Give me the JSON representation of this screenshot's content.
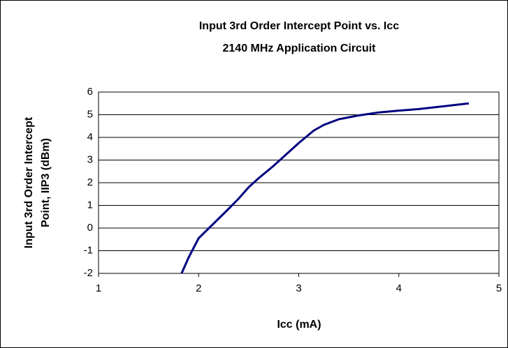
{
  "chart_data": {
    "type": "line",
    "title": "Input 3rd Order Intercept Point vs. Icc",
    "subtitle": "2140 MHz Application Circuit",
    "xlabel": "Icc (mA)",
    "ylabel": [
      "Input 3rd Order Intercept",
      "Point, IIP3 (dBm)"
    ],
    "xlim": [
      1,
      5
    ],
    "xticks": [
      1,
      2,
      3,
      4,
      5
    ],
    "ylim": [
      -2,
      6
    ],
    "yticks": [
      -2,
      -1,
      0,
      1,
      2,
      3,
      4,
      5,
      6
    ],
    "grid": true,
    "series": [
      {
        "name": "IIP3",
        "color": "#000080",
        "x": [
          1.83,
          1.9,
          2.0,
          2.15,
          2.3,
          2.4,
          2.5,
          2.6,
          2.75,
          2.9,
          3.0,
          3.15,
          3.25,
          3.4,
          3.6,
          3.8,
          4.0,
          4.2,
          4.4,
          4.6,
          4.7
        ],
        "values": [
          -2,
          -1.3,
          -0.45,
          0.2,
          0.85,
          1.3,
          1.8,
          2.2,
          2.75,
          3.35,
          3.75,
          4.3,
          4.55,
          4.8,
          4.97,
          5.1,
          5.18,
          5.25,
          5.35,
          5.45,
          5.5
        ]
      }
    ]
  }
}
